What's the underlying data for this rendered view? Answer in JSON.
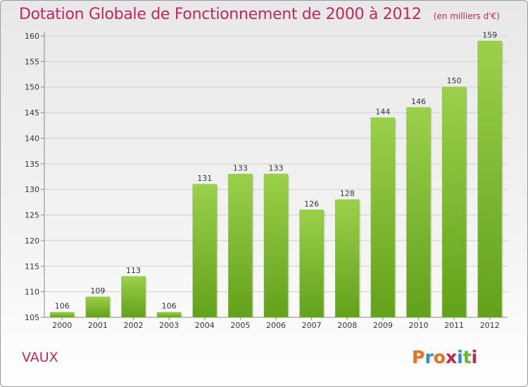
{
  "header": {
    "title": "Dotation Globale de Fonctionnement de 2000 à 2012",
    "subtitle": "(en milliers d'€)"
  },
  "footer": {
    "commune": "VAUX",
    "logo_text": "Proxiti",
    "logo_colors": [
      "#e8731c",
      "#2d8fd0",
      "#e8731c",
      "#c0265e",
      "#2d8fd0",
      "#6bb82b",
      "#c0265e"
    ]
  },
  "chart_data": {
    "type": "bar",
    "categories": [
      "2000",
      "2001",
      "2002",
      "2003",
      "2004",
      "2005",
      "2006",
      "2007",
      "2008",
      "2009",
      "2010",
      "2011",
      "2012"
    ],
    "values": [
      106,
      109,
      113,
      106,
      131,
      133,
      133,
      126,
      128,
      144,
      146,
      150,
      159
    ],
    "ylim": [
      105,
      160
    ],
    "yticks": [
      105,
      110,
      115,
      120,
      125,
      130,
      135,
      140,
      145,
      150,
      155,
      160
    ],
    "grid": true,
    "bar_color_top": "#9bd04a",
    "bar_color_bottom": "#63a11a"
  }
}
